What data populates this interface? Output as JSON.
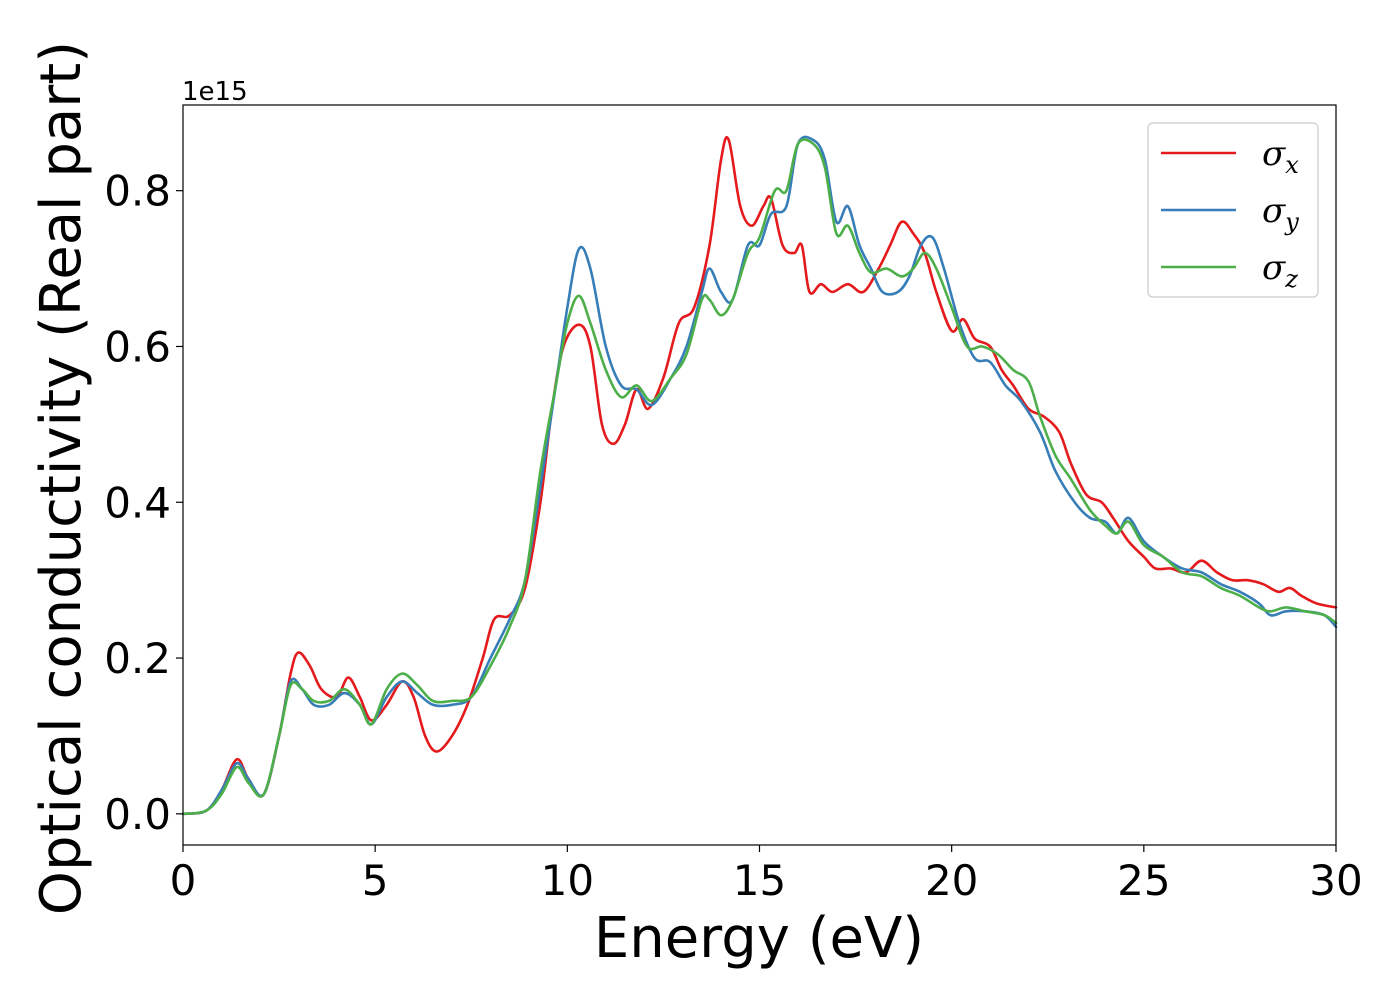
{
  "chart_data": {
    "type": "line",
    "xlabel": "Energy (eV)",
    "ylabel": "Optical conductivity (Real part)",
    "y_offset_label": "1e15",
    "xlim": [
      0,
      30
    ],
    "ylim": [
      -0.04,
      0.91
    ],
    "x_ticks": [
      0,
      5,
      10,
      15,
      20,
      25,
      30
    ],
    "x_tick_labels": [
      "0",
      "5",
      "10",
      "15",
      "20",
      "25",
      "30"
    ],
    "y_ticks": [
      0.0,
      0.2,
      0.4,
      0.6,
      0.8
    ],
    "y_tick_labels": [
      "0.0",
      "0.2",
      "0.4",
      "0.6",
      "0.8"
    ],
    "grid": false,
    "legend_position": "top-right",
    "series": [
      {
        "name": "σx",
        "symbol": "σ",
        "sub": "x",
        "color": "#e41a1c",
        "points": [
          [
            0,
            0
          ],
          [
            0.6,
            0.004
          ],
          [
            1.0,
            0.03
          ],
          [
            1.4,
            0.07
          ],
          [
            1.7,
            0.045
          ],
          [
            2.1,
            0.025
          ],
          [
            2.5,
            0.1
          ],
          [
            2.8,
            0.18
          ],
          [
            3.0,
            0.207
          ],
          [
            3.3,
            0.19
          ],
          [
            3.6,
            0.16
          ],
          [
            4.0,
            0.15
          ],
          [
            4.3,
            0.175
          ],
          [
            4.6,
            0.15
          ],
          [
            4.9,
            0.12
          ],
          [
            5.3,
            0.14
          ],
          [
            5.7,
            0.17
          ],
          [
            6.0,
            0.15
          ],
          [
            6.3,
            0.1
          ],
          [
            6.6,
            0.08
          ],
          [
            7.0,
            0.1
          ],
          [
            7.4,
            0.14
          ],
          [
            7.8,
            0.2
          ],
          [
            8.1,
            0.25
          ],
          [
            8.5,
            0.255
          ],
          [
            8.9,
            0.29
          ],
          [
            9.3,
            0.4
          ],
          [
            9.6,
            0.52
          ],
          [
            9.9,
            0.6
          ],
          [
            10.3,
            0.628
          ],
          [
            10.6,
            0.6
          ],
          [
            10.9,
            0.5
          ],
          [
            11.2,
            0.475
          ],
          [
            11.5,
            0.5
          ],
          [
            11.8,
            0.545
          ],
          [
            12.1,
            0.52
          ],
          [
            12.5,
            0.56
          ],
          [
            12.9,
            0.63
          ],
          [
            13.3,
            0.65
          ],
          [
            13.7,
            0.73
          ],
          [
            14.0,
            0.84
          ],
          [
            14.2,
            0.865
          ],
          [
            14.5,
            0.78
          ],
          [
            14.8,
            0.755
          ],
          [
            15.1,
            0.78
          ],
          [
            15.3,
            0.79
          ],
          [
            15.6,
            0.73
          ],
          [
            15.9,
            0.72
          ],
          [
            16.1,
            0.73
          ],
          [
            16.3,
            0.67
          ],
          [
            16.6,
            0.68
          ],
          [
            16.9,
            0.67
          ],
          [
            17.3,
            0.68
          ],
          [
            17.7,
            0.67
          ],
          [
            18.1,
            0.7
          ],
          [
            18.4,
            0.73
          ],
          [
            18.7,
            0.76
          ],
          [
            19.0,
            0.745
          ],
          [
            19.3,
            0.72
          ],
          [
            19.6,
            0.67
          ],
          [
            20.0,
            0.62
          ],
          [
            20.3,
            0.635
          ],
          [
            20.6,
            0.61
          ],
          [
            21.0,
            0.6
          ],
          [
            21.3,
            0.57
          ],
          [
            21.6,
            0.55
          ],
          [
            22.0,
            0.52
          ],
          [
            22.4,
            0.51
          ],
          [
            22.8,
            0.49
          ],
          [
            23.1,
            0.45
          ],
          [
            23.5,
            0.41
          ],
          [
            23.9,
            0.4
          ],
          [
            24.2,
            0.38
          ],
          [
            24.6,
            0.35
          ],
          [
            25.0,
            0.33
          ],
          [
            25.3,
            0.315
          ],
          [
            25.7,
            0.315
          ],
          [
            26.1,
            0.31
          ],
          [
            26.5,
            0.325
          ],
          [
            26.9,
            0.31
          ],
          [
            27.3,
            0.3
          ],
          [
            27.7,
            0.3
          ],
          [
            28.1,
            0.295
          ],
          [
            28.5,
            0.285
          ],
          [
            28.8,
            0.29
          ],
          [
            29.1,
            0.28
          ],
          [
            29.5,
            0.27
          ],
          [
            30.0,
            0.265
          ]
        ]
      },
      {
        "name": "σy",
        "symbol": "σ",
        "sub": "y",
        "color": "#377eb8",
        "points": [
          [
            0,
            0
          ],
          [
            0.6,
            0.004
          ],
          [
            1.0,
            0.03
          ],
          [
            1.4,
            0.065
          ],
          [
            1.7,
            0.045
          ],
          [
            2.1,
            0.025
          ],
          [
            2.5,
            0.1
          ],
          [
            2.8,
            0.17
          ],
          [
            3.1,
            0.16
          ],
          [
            3.4,
            0.14
          ],
          [
            3.8,
            0.14
          ],
          [
            4.2,
            0.155
          ],
          [
            4.6,
            0.14
          ],
          [
            4.9,
            0.115
          ],
          [
            5.3,
            0.15
          ],
          [
            5.7,
            0.17
          ],
          [
            6.1,
            0.155
          ],
          [
            6.5,
            0.14
          ],
          [
            7.0,
            0.14
          ],
          [
            7.5,
            0.15
          ],
          [
            8.0,
            0.2
          ],
          [
            8.5,
            0.25
          ],
          [
            8.9,
            0.3
          ],
          [
            9.3,
            0.42
          ],
          [
            9.7,
            0.55
          ],
          [
            10.0,
            0.65
          ],
          [
            10.3,
            0.725
          ],
          [
            10.6,
            0.7
          ],
          [
            11.0,
            0.6
          ],
          [
            11.4,
            0.55
          ],
          [
            11.8,
            0.545
          ],
          [
            12.2,
            0.525
          ],
          [
            12.7,
            0.56
          ],
          [
            13.1,
            0.6
          ],
          [
            13.5,
            0.67
          ],
          [
            13.7,
            0.7
          ],
          [
            14.0,
            0.67
          ],
          [
            14.3,
            0.66
          ],
          [
            14.7,
            0.73
          ],
          [
            15.0,
            0.73
          ],
          [
            15.3,
            0.77
          ],
          [
            15.7,
            0.78
          ],
          [
            16.0,
            0.86
          ],
          [
            16.4,
            0.865
          ],
          [
            16.7,
            0.84
          ],
          [
            17.0,
            0.76
          ],
          [
            17.3,
            0.78
          ],
          [
            17.6,
            0.73
          ],
          [
            17.9,
            0.7
          ],
          [
            18.2,
            0.67
          ],
          [
            18.6,
            0.67
          ],
          [
            18.9,
            0.69
          ],
          [
            19.2,
            0.73
          ],
          [
            19.5,
            0.74
          ],
          [
            19.8,
            0.7
          ],
          [
            20.2,
            0.63
          ],
          [
            20.6,
            0.585
          ],
          [
            21.0,
            0.58
          ],
          [
            21.4,
            0.55
          ],
          [
            21.8,
            0.53
          ],
          [
            22.3,
            0.49
          ],
          [
            22.7,
            0.44
          ],
          [
            23.2,
            0.4
          ],
          [
            23.6,
            0.38
          ],
          [
            24.0,
            0.375
          ],
          [
            24.3,
            0.36
          ],
          [
            24.6,
            0.38
          ],
          [
            25.0,
            0.35
          ],
          [
            25.5,
            0.33
          ],
          [
            26.0,
            0.315
          ],
          [
            26.5,
            0.31
          ],
          [
            27.0,
            0.295
          ],
          [
            27.5,
            0.285
          ],
          [
            28.0,
            0.27
          ],
          [
            28.3,
            0.255
          ],
          [
            28.7,
            0.26
          ],
          [
            29.2,
            0.26
          ],
          [
            29.7,
            0.255
          ],
          [
            30.0,
            0.24
          ]
        ]
      },
      {
        "name": "σz",
        "symbol": "σ",
        "sub": "z",
        "color": "#4daf4a",
        "points": [
          [
            0,
            0
          ],
          [
            0.6,
            0.004
          ],
          [
            1.0,
            0.025
          ],
          [
            1.4,
            0.06
          ],
          [
            1.7,
            0.04
          ],
          [
            2.1,
            0.025
          ],
          [
            2.5,
            0.1
          ],
          [
            2.8,
            0.165
          ],
          [
            3.1,
            0.16
          ],
          [
            3.4,
            0.145
          ],
          [
            3.8,
            0.145
          ],
          [
            4.2,
            0.16
          ],
          [
            4.6,
            0.14
          ],
          [
            4.9,
            0.115
          ],
          [
            5.3,
            0.16
          ],
          [
            5.7,
            0.18
          ],
          [
            6.1,
            0.165
          ],
          [
            6.5,
            0.145
          ],
          [
            7.0,
            0.145
          ],
          [
            7.5,
            0.15
          ],
          [
            8.0,
            0.19
          ],
          [
            8.5,
            0.24
          ],
          [
            8.9,
            0.3
          ],
          [
            9.3,
            0.44
          ],
          [
            9.7,
            0.55
          ],
          [
            10.0,
            0.63
          ],
          [
            10.3,
            0.665
          ],
          [
            10.6,
            0.63
          ],
          [
            11.0,
            0.57
          ],
          [
            11.4,
            0.535
          ],
          [
            11.8,
            0.55
          ],
          [
            12.2,
            0.53
          ],
          [
            12.7,
            0.56
          ],
          [
            13.1,
            0.59
          ],
          [
            13.5,
            0.66
          ],
          [
            13.7,
            0.66
          ],
          [
            14.0,
            0.64
          ],
          [
            14.3,
            0.66
          ],
          [
            14.7,
            0.72
          ],
          [
            15.0,
            0.74
          ],
          [
            15.4,
            0.8
          ],
          [
            15.7,
            0.8
          ],
          [
            16.0,
            0.86
          ],
          [
            16.4,
            0.86
          ],
          [
            16.7,
            0.83
          ],
          [
            17.0,
            0.745
          ],
          [
            17.3,
            0.755
          ],
          [
            17.6,
            0.72
          ],
          [
            17.9,
            0.695
          ],
          [
            18.3,
            0.7
          ],
          [
            18.7,
            0.69
          ],
          [
            19.0,
            0.7
          ],
          [
            19.3,
            0.72
          ],
          [
            19.6,
            0.7
          ],
          [
            20.0,
            0.65
          ],
          [
            20.4,
            0.6
          ],
          [
            20.8,
            0.6
          ],
          [
            21.2,
            0.59
          ],
          [
            21.6,
            0.57
          ],
          [
            22.0,
            0.555
          ],
          [
            22.3,
            0.51
          ],
          [
            22.7,
            0.46
          ],
          [
            23.1,
            0.43
          ],
          [
            23.6,
            0.39
          ],
          [
            24.0,
            0.37
          ],
          [
            24.3,
            0.36
          ],
          [
            24.6,
            0.375
          ],
          [
            25.0,
            0.345
          ],
          [
            25.5,
            0.33
          ],
          [
            26.0,
            0.31
          ],
          [
            26.5,
            0.305
          ],
          [
            27.0,
            0.29
          ],
          [
            27.5,
            0.28
          ],
          [
            28.0,
            0.265
          ],
          [
            28.3,
            0.26
          ],
          [
            28.7,
            0.265
          ],
          [
            29.2,
            0.26
          ],
          [
            29.7,
            0.255
          ],
          [
            30.0,
            0.245
          ]
        ]
      }
    ]
  }
}
